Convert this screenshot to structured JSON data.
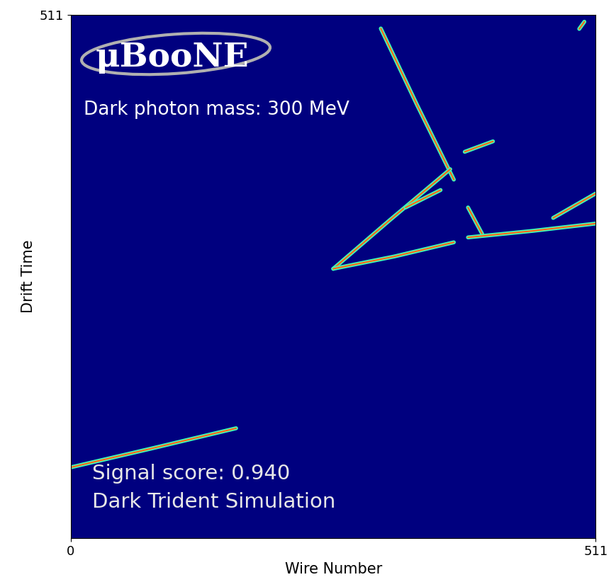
{
  "chart_data": {
    "type": "event_display",
    "logo": "μBooNE",
    "annotations": [
      "Dark photon mass: 300 MeV",
      "Signal score: 0.940",
      "Dark Trident Simulation"
    ],
    "x_label": "Wire Number",
    "y_label": "Drift Time",
    "xlim": [
      0,
      511
    ],
    "ylim": [
      0,
      511
    ],
    "xticks": [
      0,
      511
    ],
    "yticks": [
      511
    ],
    "tracks": [
      {
        "x": [
          301.8,
          337.0,
          372.9
        ],
        "y": [
          497.4,
          423.0,
          350.0
        ]
      },
      {
        "x": [
          0,
          80.0,
          160.9
        ],
        "y": [
          69.3,
          88.0,
          107.4
        ]
      },
      {
        "x": [
          255.5,
          310.0,
          369.4
        ],
        "y": [
          263.0,
          310.0,
          360.1
        ]
      },
      {
        "x": [
          255.5,
          315.0,
          372.9
        ],
        "y": [
          263.0,
          275.0,
          288.8
        ]
      },
      {
        "x": [
          386.7,
          400.5
        ],
        "y": [
          322.8,
          297.0
        ]
      },
      {
        "x": [
          386.7,
          450.0,
          511
        ],
        "y": [
          293.6,
          300.0,
          307.1
        ]
      },
      {
        "x": [
          469.6,
          511
        ],
        "y": [
          312.6,
          336.4
        ]
      },
      {
        "x": [
          383.5,
          411.0
        ],
        "y": [
          377.1,
          387.3
        ]
      },
      {
        "x": [
          326.0,
          360.0
        ],
        "y": [
          322.8,
          339.8
        ]
      },
      {
        "x": [
          495.0,
          500.0
        ],
        "y": [
          497.0,
          504.0
        ]
      }
    ]
  }
}
